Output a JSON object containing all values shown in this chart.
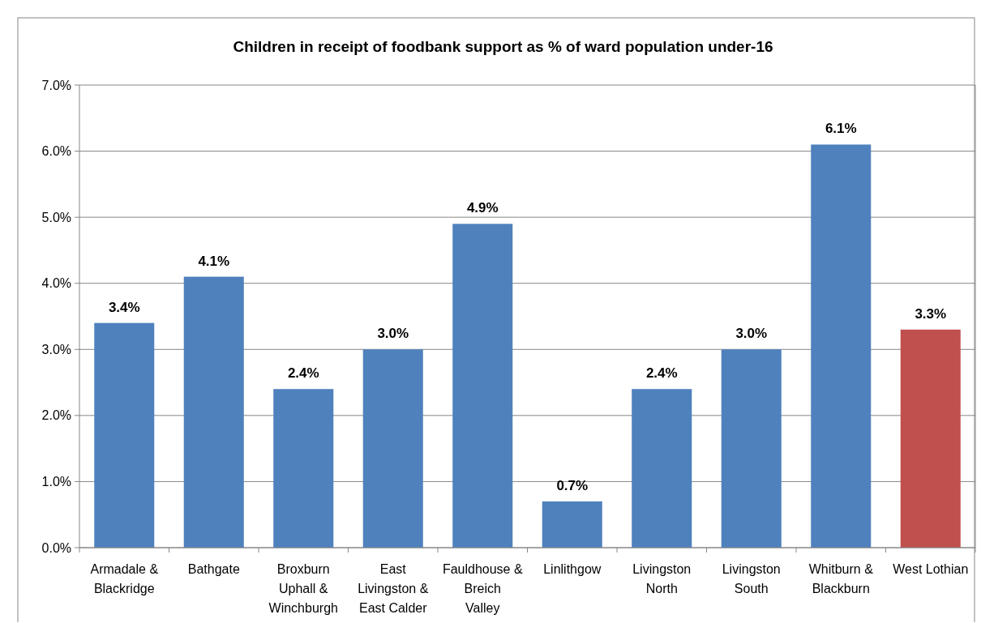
{
  "chart_data": {
    "type": "bar",
    "title": "Children in receipt of foodbank support as % of ward population under-16",
    "categories": [
      "Armadale & Blackridge",
      "Bathgate",
      "Broxburn Uphall & Winchburgh",
      "East Livingston & East Calder",
      "Fauldhouse & Breich Valley",
      "Linlithgow",
      "Livingston North",
      "Livingston South",
      "Whitburn & Blackburn",
      "West Lothian"
    ],
    "values": [
      3.4,
      4.1,
      2.4,
      3.0,
      4.9,
      0.7,
      2.4,
      3.0,
      6.1,
      3.3
    ],
    "value_labels": [
      "3.4%",
      "4.1%",
      "2.4%",
      "3.0%",
      "4.9%",
      "0.7%",
      "2.4%",
      "3.0%",
      "6.1%",
      "3.3%"
    ],
    "colors": [
      "#4f81bd",
      "#4f81bd",
      "#4f81bd",
      "#4f81bd",
      "#4f81bd",
      "#4f81bd",
      "#4f81bd",
      "#4f81bd",
      "#4f81bd",
      "#c0504d"
    ],
    "ylim": [
      0,
      7
    ],
    "yticks": [
      {
        "value": 0,
        "label": "0.0%"
      },
      {
        "value": 1,
        "label": "1.0%"
      },
      {
        "value": 2,
        "label": "2.0%"
      },
      {
        "value": 3,
        "label": "3.0%"
      },
      {
        "value": 4,
        "label": "4.0%"
      },
      {
        "value": 5,
        "label": "5.0%"
      },
      {
        "value": 6,
        "label": "6.0%"
      },
      {
        "value": 7,
        "label": "7.0%"
      }
    ],
    "grid": "y"
  }
}
